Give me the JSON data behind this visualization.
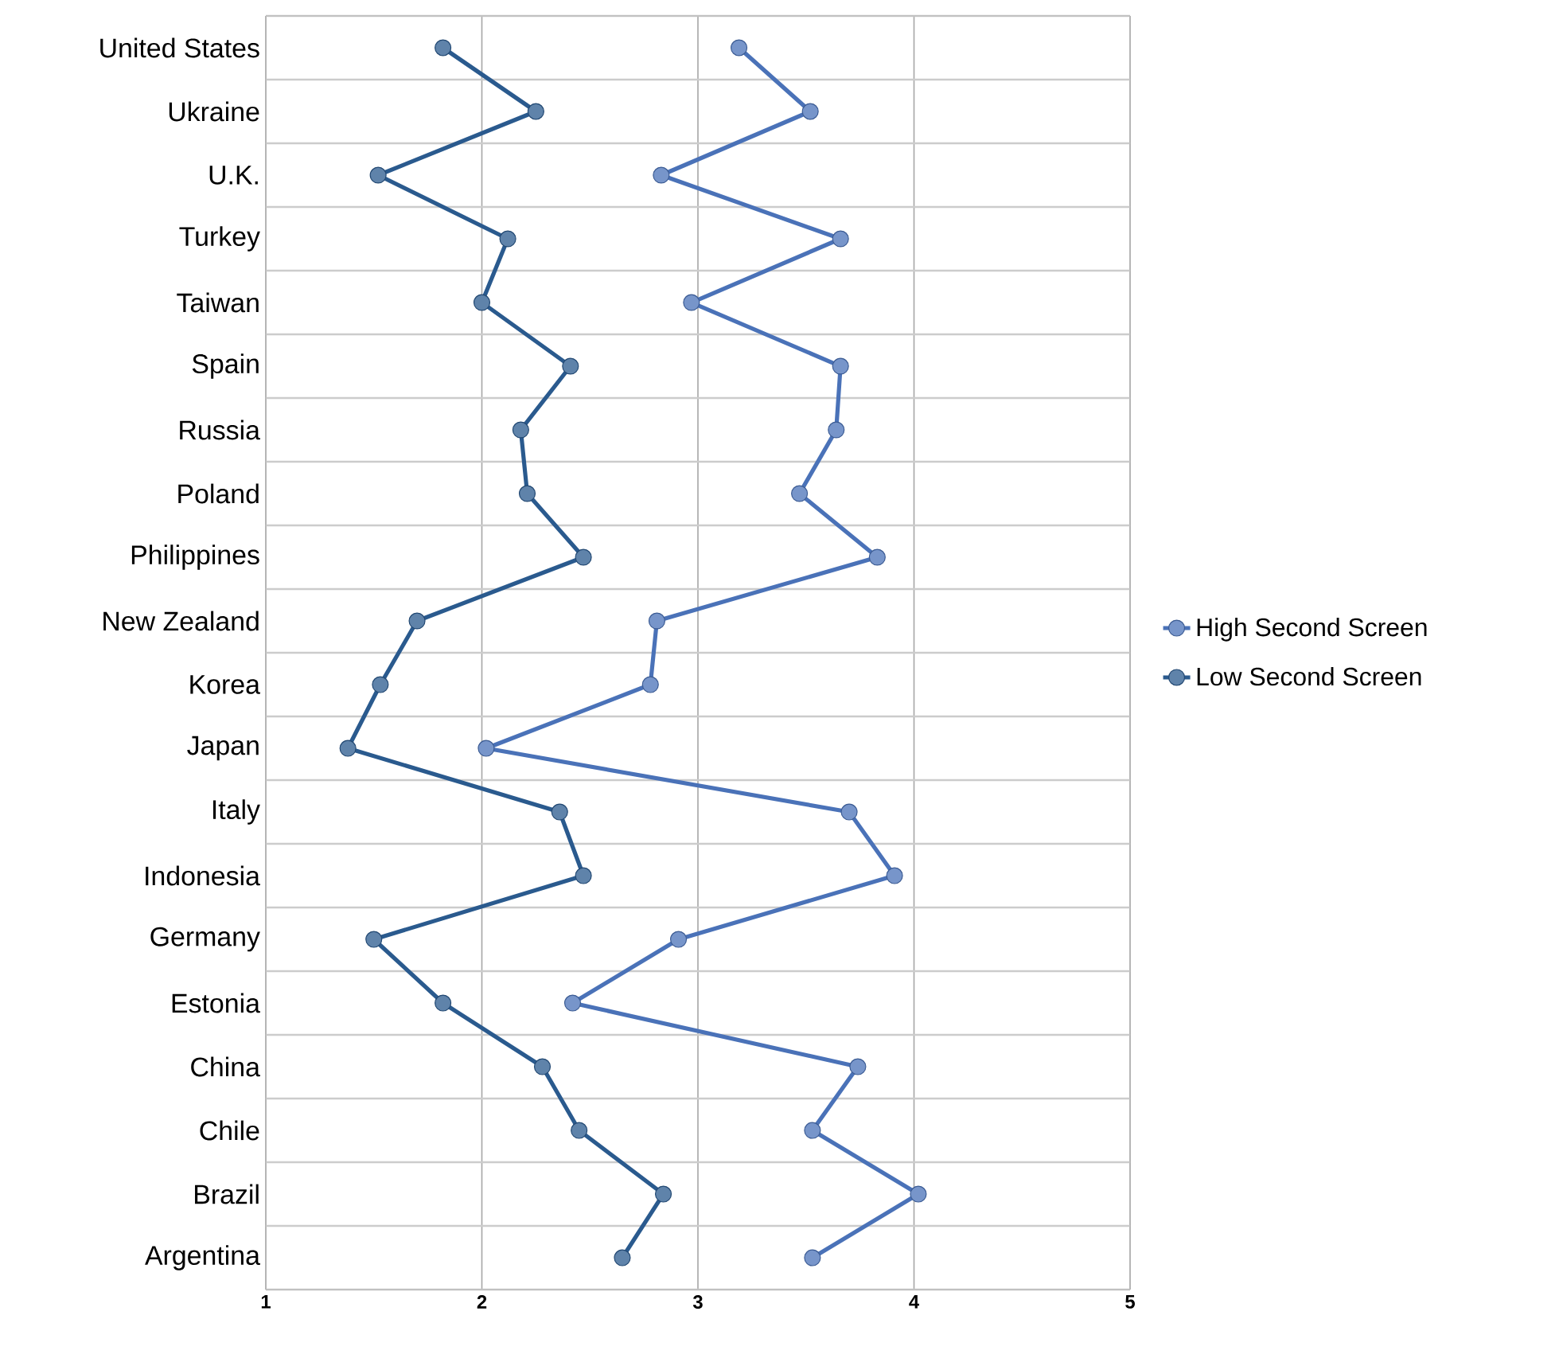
{
  "chart_data": {
    "type": "line",
    "orientation": "horizontal",
    "categories": [
      "United States",
      "Ukraine",
      "U.K.",
      "Turkey",
      "Taiwan",
      "Spain",
      "Russia",
      "Poland",
      "Philippines",
      "New Zealand",
      "Korea",
      "Japan",
      "Italy",
      "Indonesia",
      "Germany",
      "Estonia",
      "China",
      "Chile",
      "Brazil",
      "Argentina"
    ],
    "series": [
      {
        "name": "High Second Screen",
        "color": "#4a72b8",
        "values": [
          3.19,
          3.52,
          2.83,
          3.66,
          2.97,
          3.66,
          3.64,
          3.47,
          3.83,
          2.81,
          2.78,
          2.02,
          3.7,
          3.91,
          2.91,
          2.42,
          3.74,
          3.53,
          4.02,
          3.53
        ]
      },
      {
        "name": "Low Second Screen",
        "color": "#2a5a8e",
        "values": [
          1.82,
          2.25,
          1.52,
          2.12,
          2.0,
          2.41,
          2.18,
          2.21,
          2.47,
          1.7,
          1.53,
          1.38,
          2.36,
          2.47,
          1.5,
          1.82,
          2.28,
          2.45,
          2.84,
          2.65
        ]
      }
    ],
    "xlim": [
      1,
      5
    ],
    "xticks": [
      1,
      2,
      3,
      4,
      5
    ],
    "grid": true,
    "legend": "right",
    "marker": "circle",
    "line_style": "solid"
  }
}
